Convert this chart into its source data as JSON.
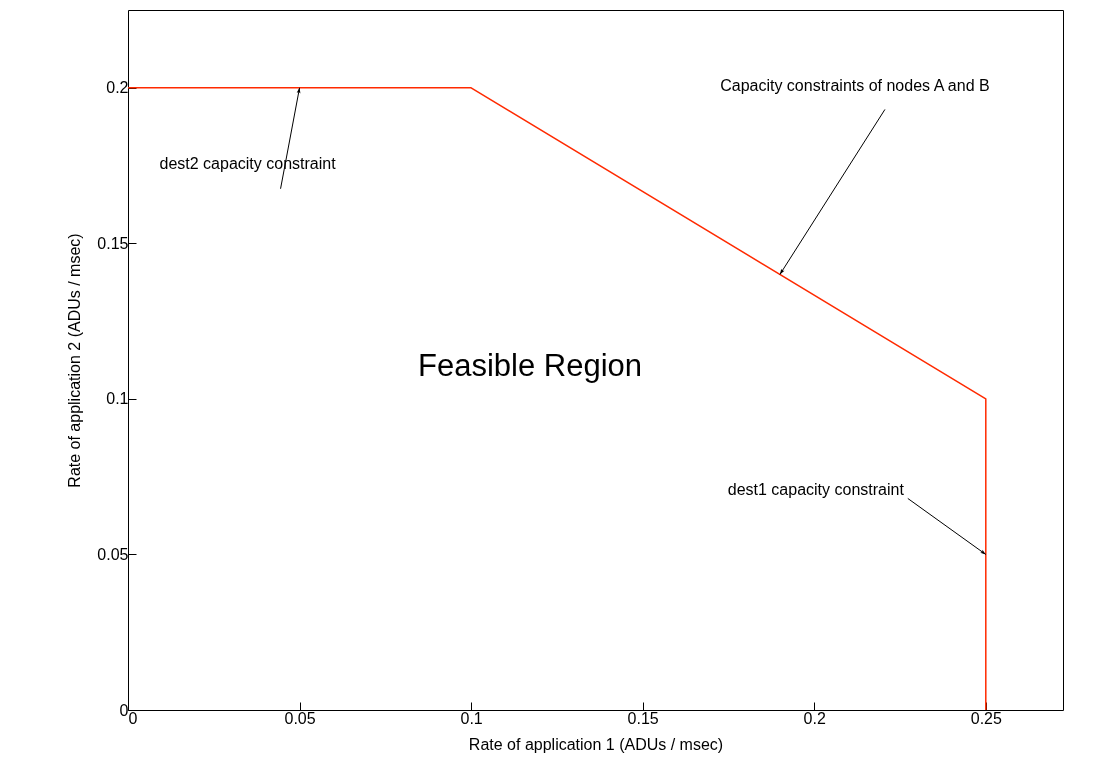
{
  "chart_data": {
    "type": "line",
    "xlabel": "Rate of application 1 (ADUs / msec)",
    "ylabel": "Rate of application 2 (ADUs / msec)",
    "series": [
      {
        "color": "#ff2a00",
        "x": [
          0,
          0.1,
          0.25,
          0.25
        ],
        "values": [
          0.2,
          0.2,
          0.1,
          0
        ]
      }
    ],
    "xlim": [
      0,
      0.2725
    ],
    "xticks": [
      0,
      0.05,
      0.1,
      0.15,
      0.2,
      0.25
    ],
    "ylim": [
      0,
      0.225
    ],
    "yticks": [
      0,
      0.05,
      0.1,
      0.15,
      0.2
    ],
    "grid": false,
    "marker": "none",
    "line_style": "solid",
    "annotations": [
      {
        "text": "dest2 capacity constraint",
        "x": 0.05,
        "y": 0.2
      },
      {
        "text": "Capacity constraints of nodes A and B",
        "x": 0.19,
        "y": 0.14
      },
      {
        "text": "dest1 capacity constraint",
        "x": 0.25,
        "y": 0.05
      },
      "Feasible Region"
    ]
  }
}
